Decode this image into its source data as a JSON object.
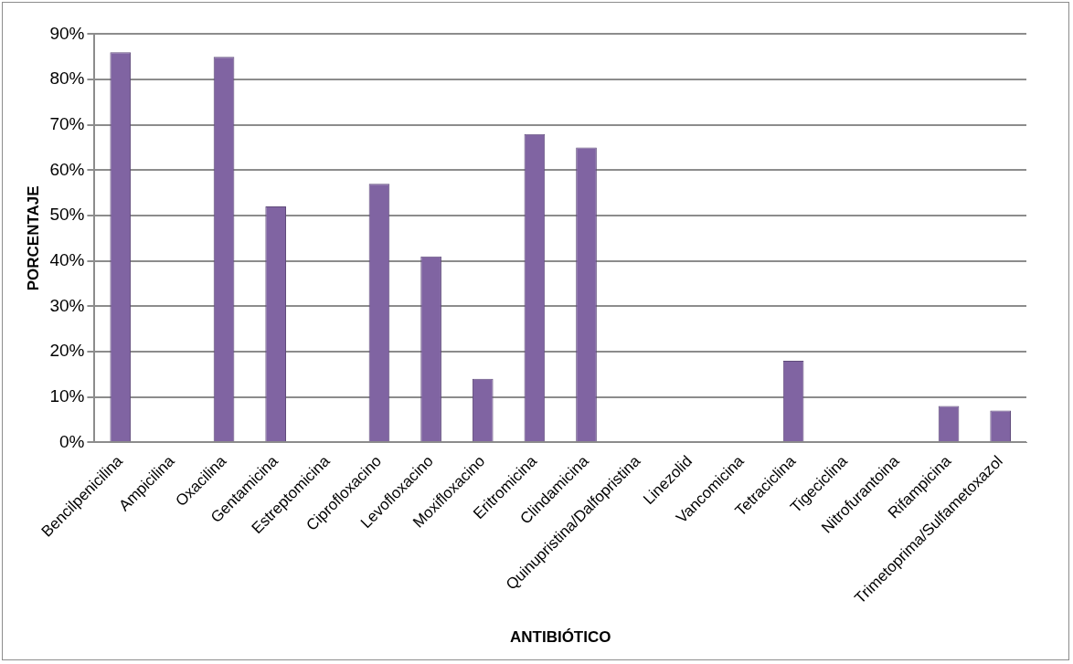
{
  "chart_data": {
    "type": "bar",
    "xlabel": "ANTIBIÓTICO",
    "ylabel": "PORCENTAJE",
    "categories": [
      "Bencilpenicilina",
      "Ampicilina",
      "Oxacilina",
      "Gentamicina",
      "Estreptomicina",
      "Ciprofloxacino",
      "Levofloxacino",
      "Moxifloxacino",
      "Eritromicina",
      "Clindamicina",
      "Quinupristina/Dalfopristina",
      "Linezolid",
      "Vancomicina",
      "Tetraciclina",
      "Tigeciclina",
      "Nitrofurantoina",
      "Rifampicina",
      "Trimetoprima/Sulfametoxazol"
    ],
    "values": [
      86,
      0,
      85,
      52,
      0,
      57,
      41,
      14,
      68,
      65,
      0,
      0,
      0,
      18,
      0,
      0,
      8,
      7
    ],
    "color": "#8064a2",
    "ylim": [
      0,
      90
    ],
    "yticks": [
      {
        "value": 0,
        "label": "0%"
      },
      {
        "value": 10,
        "label": "10%"
      },
      {
        "value": 20,
        "label": "20%"
      },
      {
        "value": 30,
        "label": "30%"
      },
      {
        "value": 40,
        "label": "40%"
      },
      {
        "value": 50,
        "label": "50%"
      },
      {
        "value": 60,
        "label": "60%"
      },
      {
        "value": 70,
        "label": "70%"
      },
      {
        "value": 80,
        "label": "80%"
      },
      {
        "value": 90,
        "label": "90%"
      }
    ],
    "grid": "y",
    "legend": false
  }
}
